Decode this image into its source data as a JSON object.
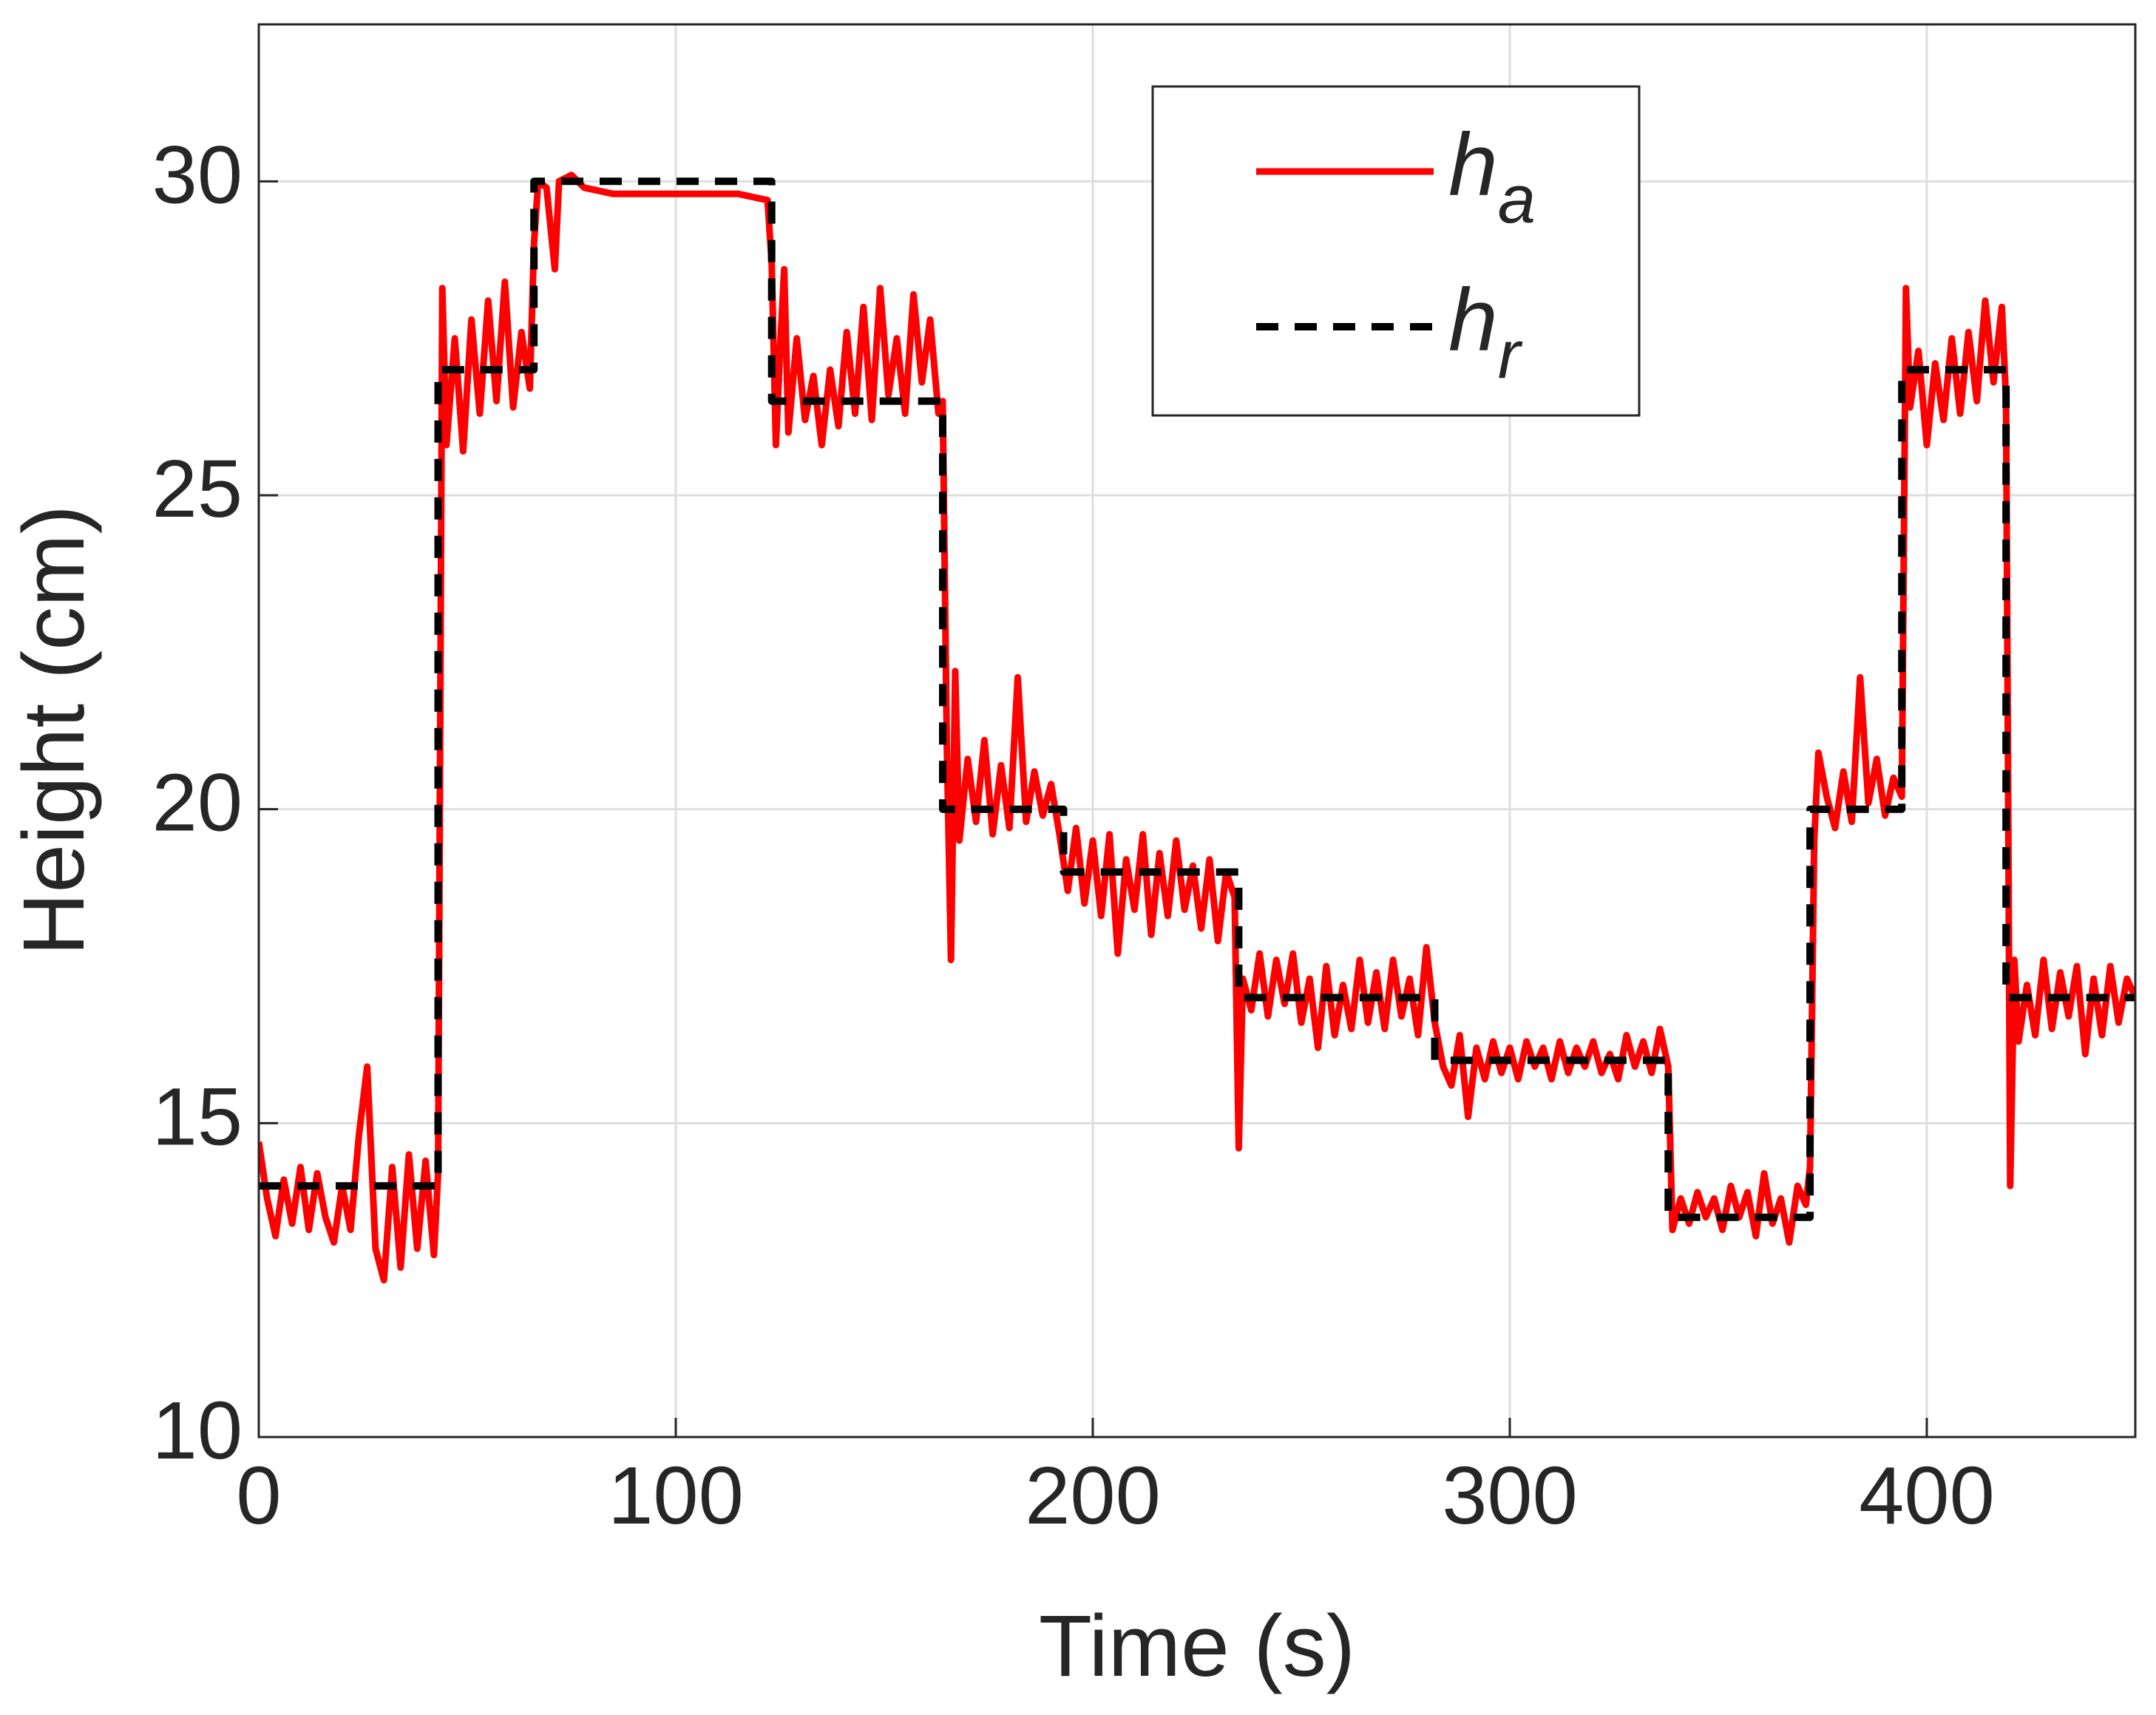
{
  "chart_data": {
    "type": "line",
    "xlabel": "Time (s)",
    "ylabel": "Height (cm)",
    "xlim": [
      0,
      450
    ],
    "xticks": [
      0,
      100,
      200,
      300,
      400
    ],
    "ylim": [
      10,
      32.5
    ],
    "yticks": [
      10,
      15,
      20,
      25,
      30
    ],
    "grid": true,
    "legend": "upper center",
    "series": [
      {
        "name": "h_a",
        "color": "#ff0000",
        "dash": false,
        "x": [
          0,
          2,
          4,
          6,
          8,
          10,
          12,
          14,
          16,
          18,
          20,
          22,
          24,
          26,
          28,
          30,
          32,
          34,
          36,
          38,
          40,
          42,
          43,
          44,
          45,
          47,
          49,
          51,
          53,
          55,
          57,
          59,
          61,
          63,
          65,
          66,
          67,
          69,
          71,
          72,
          75,
          78,
          85,
          95,
          105,
          115,
          122,
          123,
          124,
          125,
          126,
          127,
          129,
          131,
          133,
          135,
          137,
          139,
          141,
          143,
          145,
          147,
          149,
          151,
          153,
          155,
          157,
          159,
          161,
          163,
          164,
          165,
          166,
          167,
          168,
          170,
          172,
          174,
          176,
          178,
          180,
          182,
          184,
          186,
          188,
          190,
          192,
          194,
          196,
          198,
          200,
          202,
          204,
          206,
          208,
          210,
          212,
          214,
          216,
          218,
          220,
          222,
          224,
          226,
          228,
          230,
          232,
          234,
          235,
          236,
          238,
          240,
          242,
          244,
          246,
          248,
          250,
          252,
          254,
          256,
          258,
          260,
          262,
          264,
          266,
          268,
          270,
          272,
          274,
          276,
          278,
          280,
          282,
          284,
          286,
          288,
          290,
          292,
          294,
          296,
          298,
          300,
          302,
          304,
          306,
          308,
          310,
          312,
          314,
          316,
          318,
          320,
          322,
          324,
          326,
          328,
          330,
          332,
          334,
          336,
          338,
          339,
          341,
          343,
          345,
          347,
          349,
          351,
          353,
          355,
          357,
          359,
          361,
          363,
          365,
          367,
          369,
          371,
          372,
          373,
          374,
          376,
          378,
          380,
          382,
          384,
          386,
          388,
          390,
          392,
          394,
          395,
          396,
          398,
          400,
          402,
          404,
          406,
          408,
          410,
          412,
          414,
          416,
          418,
          419,
          420,
          421,
          422,
          424,
          426,
          428,
          430,
          432,
          434,
          436,
          438,
          440,
          442,
          444,
          446,
          448,
          450
        ],
        "values": [
          14.7,
          13.8,
          13.2,
          14.1,
          13.4,
          14.3,
          13.3,
          14.2,
          13.5,
          13.1,
          14.0,
          13.3,
          14.8,
          15.9,
          13.0,
          12.5,
          14.3,
          12.7,
          14.5,
          13.0,
          14.4,
          12.9,
          14.2,
          28.3,
          25.8,
          27.5,
          25.7,
          27.8,
          26.3,
          28.1,
          26.5,
          28.4,
          26.4,
          27.6,
          26.7,
          29.0,
          30.0,
          29.9,
          28.6,
          30.0,
          30.1,
          29.9,
          29.8,
          29.8,
          29.8,
          29.8,
          29.7,
          28.7,
          25.8,
          27.3,
          28.6,
          26.0,
          27.5,
          26.2,
          26.9,
          25.8,
          27.0,
          26.1,
          27.6,
          26.3,
          28.0,
          26.2,
          28.3,
          26.6,
          27.5,
          26.3,
          28.2,
          26.8,
          27.8,
          26.3,
          26.5,
          21.0,
          17.6,
          22.2,
          19.5,
          20.8,
          19.8,
          21.1,
          19.6,
          20.7,
          19.7,
          22.1,
          19.8,
          20.6,
          19.9,
          20.4,
          19.6,
          18.7,
          19.7,
          18.5,
          19.5,
          18.3,
          19.6,
          17.7,
          19.2,
          18.4,
          19.6,
          18.0,
          19.3,
          18.3,
          19.5,
          18.4,
          19.1,
          18.1,
          19.2,
          17.9,
          19.0,
          18.6,
          14.6,
          17.3,
          16.8,
          17.7,
          16.7,
          17.6,
          16.9,
          17.7,
          16.6,
          17.3,
          16.2,
          17.5,
          16.4,
          17.2,
          16.5,
          17.6,
          16.6,
          17.4,
          16.5,
          17.6,
          16.7,
          17.3,
          16.4,
          17.8,
          16.6,
          15.9,
          15.6,
          16.4,
          15.1,
          16.2,
          15.7,
          16.3,
          15.8,
          16.2,
          15.7,
          16.3,
          15.9,
          16.2,
          15.7,
          16.3,
          15.8,
          16.2,
          15.9,
          16.3,
          15.8,
          16.1,
          15.7,
          16.4,
          15.9,
          16.3,
          15.8,
          16.5,
          15.9,
          13.3,
          13.8,
          13.4,
          13.9,
          13.5,
          13.8,
          13.3,
          14.0,
          13.5,
          13.9,
          13.2,
          14.2,
          13.4,
          13.8,
          13.1,
          14.0,
          13.7,
          14.3,
          19.5,
          20.9,
          20.2,
          19.7,
          20.6,
          19.8,
          22.1,
          20.1,
          20.8,
          19.9,
          20.5,
          20.2,
          28.3,
          26.4,
          27.3,
          25.8,
          27.1,
          26.2,
          27.5,
          26.3,
          27.6,
          26.5,
          28.1,
          26.8,
          28.0,
          26.5,
          14.0,
          17.6,
          16.3,
          17.2,
          16.4,
          17.6,
          16.5,
          17.4,
          16.7,
          17.5,
          16.1,
          17.3,
          16.4,
          17.5,
          16.6,
          17.3,
          17.0
        ]
      },
      {
        "name": "h_r",
        "color": "#000000",
        "dash": true,
        "x": [
          0,
          43,
          43,
          66,
          66,
          123,
          123,
          164,
          164,
          193,
          193,
          235,
          235,
          282,
          282,
          338,
          338,
          372,
          372,
          394,
          394,
          419,
          419,
          450
        ],
        "values": [
          14,
          14,
          27,
          27,
          30,
          30,
          26.5,
          26.5,
          20,
          20,
          19,
          19,
          17,
          17,
          16,
          16,
          13.5,
          13.5,
          20,
          20,
          27,
          27,
          17,
          17
        ]
      }
    ]
  }
}
